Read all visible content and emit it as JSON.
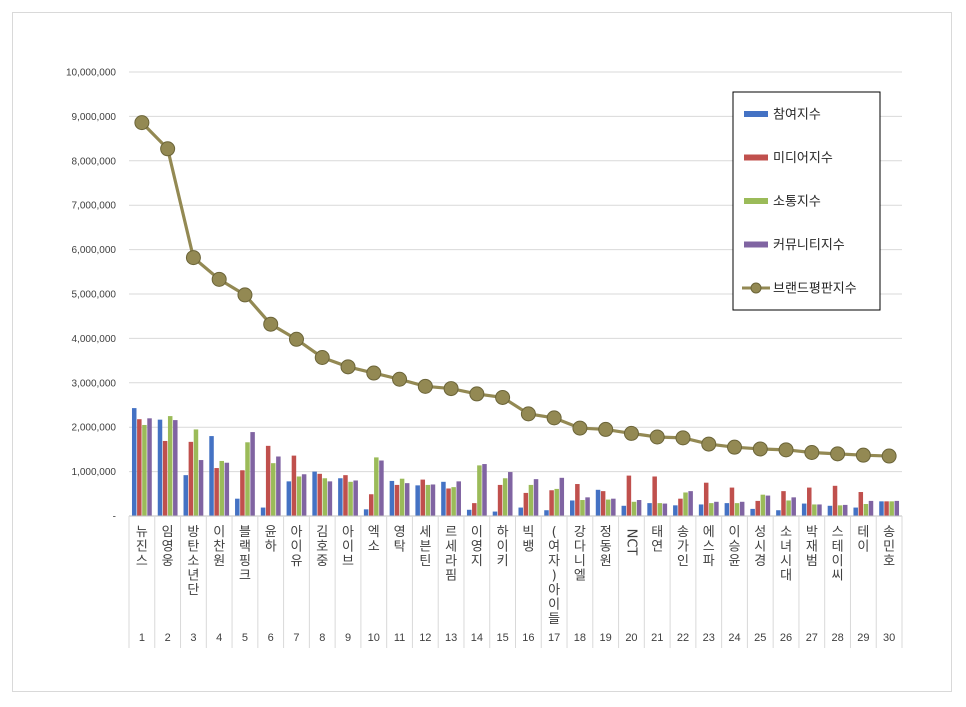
{
  "chart_data": {
    "type": "bar",
    "title": "",
    "xlabel": "",
    "ylabel": "",
    "ylim": [
      0,
      10000000
    ],
    "yticks": [
      0,
      1000000,
      2000000,
      3000000,
      4000000,
      5000000,
      6000000,
      7000000,
      8000000,
      9000000,
      10000000
    ],
    "ytick_labels": [
      "-",
      "1,000,000",
      "2,000,000",
      "3,000,000",
      "4,000,000",
      "5,000,000",
      "6,000,000",
      "7,000,000",
      "8,000,000",
      "9,000,000",
      "10,000,000"
    ],
    "grid": true,
    "legend_position": "top-right",
    "categories": [
      "뉴진스",
      "임영웅",
      "방탄소년단",
      "이찬원",
      "블랙핑크",
      "윤하",
      "아이유",
      "김호중",
      "아이브",
      "엑소",
      "영탁",
      "세븐틴",
      "르세라핌",
      "이영지",
      "하이키",
      "빅뱅",
      "(여자)아이들",
      "강다니엘",
      "정동원",
      "NCT",
      "태연",
      "송가인",
      "에스파",
      "이승윤",
      "성시경",
      "소녀시대",
      "박재범",
      "스테이씨",
      "테이",
      "송민호"
    ],
    "ranks": [
      "1",
      "2",
      "3",
      "4",
      "5",
      "6",
      "7",
      "8",
      "9",
      "10",
      "11",
      "12",
      "13",
      "14",
      "15",
      "16",
      "17",
      "18",
      "19",
      "20",
      "21",
      "22",
      "23",
      "24",
      "25",
      "26",
      "27",
      "28",
      "29",
      "30"
    ],
    "series": [
      {
        "name": "참여지수",
        "kind": "bar",
        "color": "#4472c4",
        "values": [
          2430000,
          2170000,
          920000,
          1800000,
          390000,
          190000,
          780000,
          1000000,
          850000,
          150000,
          790000,
          690000,
          770000,
          140000,
          100000,
          190000,
          130000,
          350000,
          590000,
          230000,
          290000,
          240000,
          260000,
          290000,
          160000,
          130000,
          280000,
          230000,
          190000,
          330000
        ]
      },
      {
        "name": "미디어지수",
        "kind": "bar",
        "color": "#c0504d",
        "values": [
          2180000,
          1690000,
          1670000,
          1080000,
          1030000,
          1580000,
          1360000,
          950000,
          920000,
          490000,
          700000,
          820000,
          620000,
          290000,
          700000,
          520000,
          580000,
          720000,
          560000,
          910000,
          890000,
          390000,
          750000,
          640000,
          340000,
          560000,
          640000,
          680000,
          540000,
          330000
        ]
      },
      {
        "name": "소통지수",
        "kind": "bar",
        "color": "#9bbb59",
        "values": [
          2050000,
          2250000,
          1950000,
          1240000,
          1660000,
          1190000,
          890000,
          850000,
          770000,
          1320000,
          840000,
          700000,
          650000,
          1140000,
          850000,
          700000,
          610000,
          360000,
          370000,
          320000,
          290000,
          530000,
          290000,
          290000,
          480000,
          350000,
          260000,
          240000,
          270000,
          330000
        ]
      },
      {
        "name": "커뮤니티지수",
        "kind": "bar",
        "color": "#8064a2",
        "values": [
          2200000,
          2160000,
          1260000,
          1200000,
          1890000,
          1340000,
          940000,
          780000,
          800000,
          1250000,
          740000,
          710000,
          780000,
          1170000,
          990000,
          830000,
          860000,
          420000,
          390000,
          360000,
          280000,
          560000,
          320000,
          320000,
          460000,
          420000,
          260000,
          250000,
          340000,
          340000
        ]
      },
      {
        "name": "브랜드평판지수",
        "kind": "line",
        "color": "#938953",
        "values": [
          8860000,
          8270000,
          5820000,
          5330000,
          4980000,
          4320000,
          3980000,
          3570000,
          3360000,
          3220000,
          3080000,
          2920000,
          2870000,
          2750000,
          2670000,
          2300000,
          2210000,
          1980000,
          1950000,
          1860000,
          1780000,
          1760000,
          1620000,
          1550000,
          1510000,
          1490000,
          1430000,
          1400000,
          1370000,
          1350000
        ]
      }
    ]
  }
}
